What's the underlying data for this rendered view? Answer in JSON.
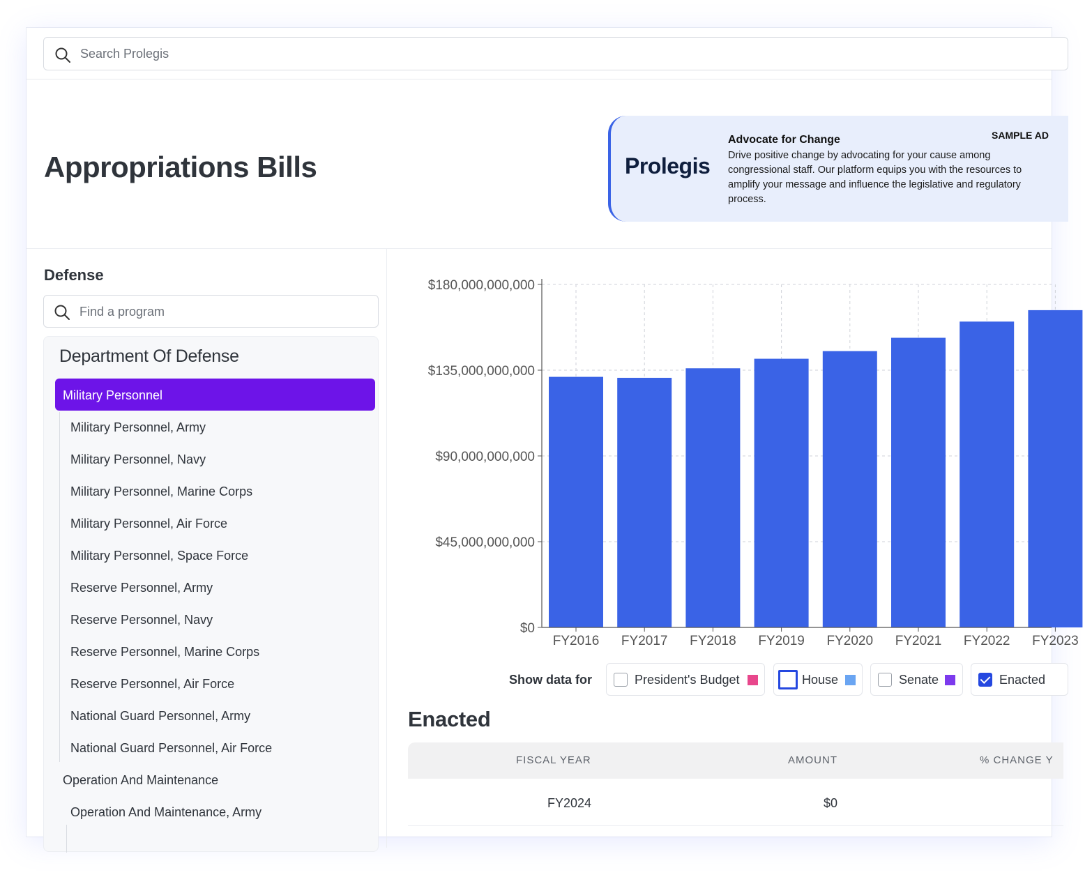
{
  "search": {
    "placeholder": "Search Prolegis"
  },
  "page": {
    "title": "Appropriations Bills"
  },
  "ad": {
    "logo": "Prolegis",
    "headline": "Advocate for Change",
    "body": "Drive positive change by advocating for your cause among congressional staff. Our platform equips you with the resources to amplify your message and influence the legislative and regulatory process.",
    "tag": "SAMPLE AD"
  },
  "sidebar": {
    "section_title": "Defense",
    "find_placeholder": "Find a program",
    "department": "Department Of Defense",
    "active_item": "Military Personnel",
    "items": [
      "Military Personnel, Army",
      "Military Personnel, Navy",
      "Military Personnel, Marine Corps",
      "Military Personnel, Air Force",
      "Military Personnel, Space Force",
      "Reserve Personnel, Army",
      "Reserve Personnel, Navy",
      "Reserve Personnel, Marine Corps",
      "Reserve Personnel, Air Force",
      "National Guard Personnel, Army",
      "National Guard Personnel, Air Force"
    ],
    "parent_item": "Operation And Maintenance",
    "sub_item": "Operation And Maintenance, Army"
  },
  "chart_data": {
    "type": "bar",
    "title": "",
    "xlabel": "",
    "ylabel": "",
    "categories": [
      "FY2016",
      "FY2017",
      "FY2018",
      "FY2019",
      "FY2020",
      "FY2021",
      "FY2022",
      "FY2023"
    ],
    "series": [
      {
        "name": "Enacted",
        "values": [
          131500000000,
          131000000000,
          136000000000,
          141000000000,
          145000000000,
          152000000000,
          160500000000,
          166500000000
        ]
      }
    ],
    "y_ticks": [
      "$180,000,000,000",
      "$135,000,000,000",
      "$90,000,000,000",
      "$45,000,000,000",
      "$0"
    ],
    "ylim": [
      0,
      180000000000
    ],
    "grid": true
  },
  "legend": {
    "label": "Show data for",
    "items": [
      {
        "label": "President's Budget",
        "color": "#e8478c",
        "checked": false
      },
      {
        "label": "House",
        "color": "#6aa5f2",
        "checked": false
      },
      {
        "label": "Senate",
        "color": "#7c3aed",
        "checked": false
      },
      {
        "label": "Enacted",
        "color": "#3a63e6",
        "checked": true
      }
    ]
  },
  "table": {
    "title": "Enacted",
    "headers": [
      "FISCAL YEAR",
      "AMOUNT",
      "% CHANGE Y"
    ],
    "rows": [
      {
        "fiscal_year": "FY2024",
        "amount": "$0"
      }
    ]
  },
  "colors": {
    "bar": "#3a63e6",
    "accent": "#6d14e8"
  }
}
